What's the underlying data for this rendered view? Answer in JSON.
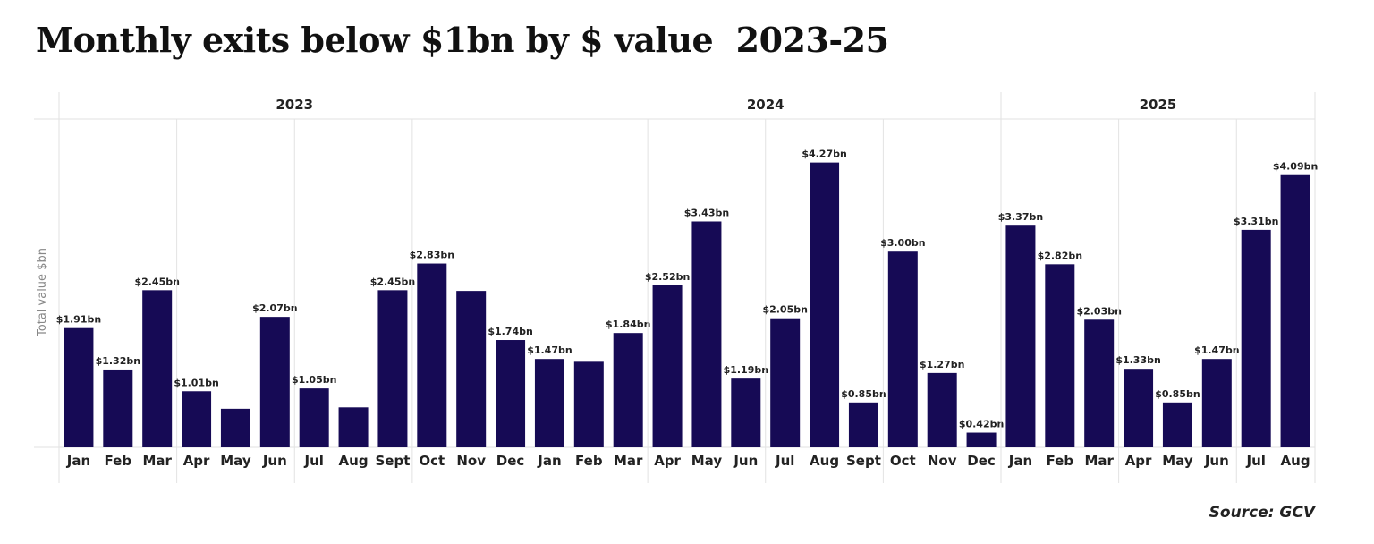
{
  "chart_data": {
    "type": "bar",
    "title": "Monthly exits below $1bn by $ value  2023-25",
    "ylabel": "Total value $bn",
    "xlabel": "",
    "source": "Source: GCV",
    "ylim": [
      0.21,
      4.89
    ],
    "grid": "vertical quarter separators",
    "bar_color": "#160A55",
    "groups": [
      {
        "year": "2023",
        "months": [
          "Jan",
          "Feb",
          "Mar",
          "Apr",
          "May",
          "Jun",
          "Jul",
          "Aug",
          "Sept",
          "Oct",
          "Nov",
          "Dec"
        ],
        "values": [
          1.91,
          1.32,
          2.45,
          1.01,
          0.76,
          2.07,
          1.05,
          0.78,
          2.45,
          2.83,
          2.44,
          1.74
        ],
        "labels": [
          "$1.91bn",
          "$1.32bn",
          "$2.45bn",
          "$1.01bn",
          "",
          "$2.07bn",
          "$1.05bn",
          "",
          "$2.45bn",
          "$2.83bn",
          "",
          "$1.74bn"
        ]
      },
      {
        "year": "2024",
        "months": [
          "Jan",
          "Feb",
          "Mar",
          "Apr",
          "May",
          "Jun",
          "Jul",
          "Aug",
          "Sept",
          "Oct",
          "Nov",
          "Dec"
        ],
        "values": [
          1.47,
          1.43,
          1.84,
          2.52,
          3.43,
          1.19,
          2.05,
          4.27,
          0.85,
          3.0,
          1.27,
          0.42
        ],
        "labels": [
          "$1.47bn",
          "",
          "$1.84bn",
          "$2.52bn",
          "$3.43bn",
          "$1.19bn",
          "$2.05bn",
          "$4.27bn",
          "$0.85bn",
          "$3.00bn",
          "$1.27bn",
          "$0.42bn"
        ]
      },
      {
        "year": "2025",
        "months": [
          "Jan",
          "Feb",
          "Mar",
          "Apr",
          "May",
          "Jun",
          "Jul",
          "Aug"
        ],
        "values": [
          3.37,
          2.82,
          2.03,
          1.33,
          0.85,
          1.47,
          3.31,
          4.09
        ],
        "labels": [
          "$3.37bn",
          "$2.82bn",
          "$2.03bn",
          "$1.33bn",
          "$0.85bn",
          "$1.47bn",
          "$3.31bn",
          "$4.09bn"
        ]
      }
    ]
  }
}
